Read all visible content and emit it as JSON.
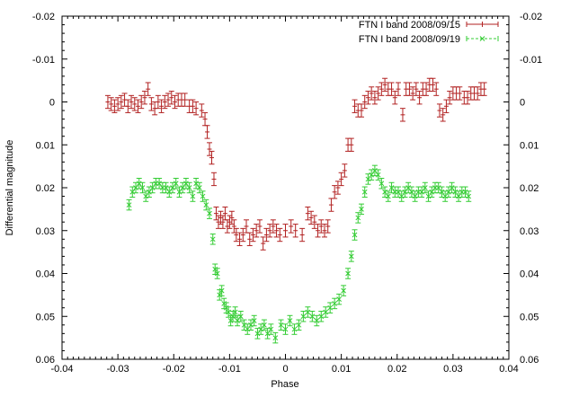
{
  "chart_data": {
    "type": "scatter",
    "title": "",
    "xlabel": "Phase",
    "ylabel": "Differential magnitude",
    "xlim": [
      -0.04,
      0.04
    ],
    "ylim": [
      -0.02,
      0.06
    ],
    "y_inverted": true,
    "grid": false,
    "legend_position": "top-right",
    "xticks": [
      "-0.04",
      "-0.03",
      "-0.02",
      "-0.01",
      "0",
      "0.01",
      "0.02",
      "0.03",
      "0.04"
    ],
    "yticks": [
      "-0.02",
      "-0.01",
      "0",
      "0.01",
      "0.02",
      "0.03",
      "0.04",
      "0.05",
      "0.06"
    ],
    "series": [
      {
        "name": "FTN I band 2008/09/15",
        "color": "#b22222",
        "marker": "plus",
        "yerr": 0.0015,
        "x": [
          -0.0318,
          -0.0312,
          -0.0306,
          -0.03,
          -0.0294,
          -0.0288,
          -0.0282,
          -0.0276,
          -0.027,
          -0.0264,
          -0.0258,
          -0.0252,
          -0.0246,
          -0.024,
          -0.0234,
          -0.0228,
          -0.0222,
          -0.0216,
          -0.021,
          -0.0204,
          -0.0198,
          -0.0192,
          -0.0186,
          -0.018,
          -0.0172,
          -0.0166,
          -0.016,
          -0.015,
          -0.0144,
          -0.014,
          -0.0136,
          -0.0132,
          -0.0128,
          -0.0124,
          -0.012,
          -0.0116,
          -0.0112,
          -0.0108,
          -0.0104,
          -0.01,
          -0.0096,
          -0.0092,
          -0.0088,
          -0.0082,
          -0.0076,
          -0.007,
          -0.0064,
          -0.0058,
          -0.0052,
          -0.0046,
          -0.004,
          -0.0034,
          -0.0028,
          -0.0022,
          -0.0016,
          -0.001,
          0.0,
          0.001,
          0.0018,
          0.003,
          0.004,
          0.0046,
          0.0052,
          0.0058,
          0.0064,
          0.007,
          0.0076,
          0.0082,
          0.0088,
          0.0094,
          0.01,
          0.0106,
          0.0112,
          0.0118,
          0.0124,
          0.013,
          0.0136,
          0.0142,
          0.0148,
          0.0154,
          0.016,
          0.0166,
          0.0172,
          0.0178,
          0.0184,
          0.019,
          0.0196,
          0.0202,
          0.021,
          0.0216,
          0.0222,
          0.0228,
          0.0234,
          0.024,
          0.0246,
          0.0252,
          0.0258,
          0.0264,
          0.027,
          0.0276,
          0.0282,
          0.0288,
          0.0294,
          0.03,
          0.0306,
          0.0312,
          0.032,
          0.0326,
          0.0332,
          0.0338,
          0.0344,
          0.035,
          0.0356
        ],
        "y": [
          0.0,
          0.0005,
          0.001,
          0.0005,
          0.0,
          -0.0005,
          0.001,
          0.0,
          0.0005,
          0.001,
          0.0,
          -0.001,
          -0.003,
          0.0005,
          0.0015,
          0.0,
          0.001,
          0.0,
          -0.0005,
          -0.001,
          0.0,
          -0.0005,
          -0.0005,
          -0.0005,
          0.001,
          0.001,
          0.0015,
          0.002,
          0.004,
          0.007,
          0.011,
          0.013,
          0.018,
          0.026,
          0.028,
          0.027,
          0.028,
          0.026,
          0.029,
          0.028,
          0.027,
          0.029,
          0.031,
          0.032,
          0.031,
          0.029,
          0.032,
          0.031,
          0.03,
          0.029,
          0.033,
          0.031,
          0.03,
          0.029,
          0.03,
          0.031,
          0.03,
          0.029,
          0.03,
          0.031,
          0.026,
          0.027,
          0.028,
          0.03,
          0.029,
          0.03,
          0.029,
          0.024,
          0.021,
          0.02,
          0.018,
          0.016,
          0.01,
          0.01,
          0.001,
          0.002,
          0.002,
          0.0,
          -0.001,
          -0.002,
          -0.001,
          -0.002,
          -0.003,
          -0.004,
          -0.003,
          -0.003,
          -0.001,
          -0.003,
          0.003,
          -0.003,
          -0.003,
          -0.002,
          -0.003,
          -0.001,
          -0.003,
          -0.003,
          -0.004,
          -0.004,
          -0.003,
          0.002,
          0.003,
          0.001,
          -0.001,
          -0.002,
          -0.002,
          -0.002,
          -0.001,
          -0.001,
          -0.002,
          -0.002,
          -0.002,
          -0.003,
          -0.003
        ]
      },
      {
        "name": "FTN I band 2008/09/19",
        "color": "#33cc33",
        "marker": "cross",
        "yerr": 0.0012,
        "x": [
          -0.028,
          -0.0274,
          -0.0268,
          -0.0262,
          -0.0256,
          -0.025,
          -0.0244,
          -0.0238,
          -0.0232,
          -0.0226,
          -0.022,
          -0.0214,
          -0.0208,
          -0.0202,
          -0.0196,
          -0.019,
          -0.0184,
          -0.0178,
          -0.0172,
          -0.0166,
          -0.016,
          -0.0154,
          -0.0148,
          -0.0142,
          -0.0136,
          -0.013,
          -0.0126,
          -0.0122,
          -0.0118,
          -0.0114,
          -0.011,
          -0.0106,
          -0.0102,
          -0.0098,
          -0.0094,
          -0.009,
          -0.0086,
          -0.008,
          -0.0074,
          -0.0068,
          -0.0062,
          -0.0056,
          -0.005,
          -0.0044,
          -0.0038,
          -0.0032,
          -0.0026,
          -0.0018,
          -0.0008,
          0.0,
          0.0008,
          0.0016,
          0.0024,
          0.0032,
          0.004,
          0.0048,
          0.0056,
          0.0064,
          0.0072,
          0.008,
          0.0088,
          0.0096,
          0.0104,
          0.0112,
          0.0118,
          0.0124,
          0.013,
          0.0136,
          0.0142,
          0.0148,
          0.0154,
          0.016,
          0.0166,
          0.0172,
          0.0178,
          0.0184,
          0.019,
          0.0196,
          0.0202,
          0.0208,
          0.0214,
          0.022,
          0.0226,
          0.0232,
          0.0238,
          0.0244,
          0.025,
          0.0256,
          0.0262,
          0.0268,
          0.0274,
          0.028,
          0.0286,
          0.0292,
          0.0298,
          0.0304,
          0.031,
          0.0316,
          0.0322,
          0.0328
        ],
        "y": [
          0.024,
          0.021,
          0.02,
          0.019,
          0.02,
          0.022,
          0.021,
          0.02,
          0.019,
          0.019,
          0.02,
          0.02,
          0.021,
          0.02,
          0.019,
          0.021,
          0.02,
          0.019,
          0.02,
          0.022,
          0.019,
          0.02,
          0.022,
          0.024,
          0.026,
          0.032,
          0.039,
          0.04,
          0.045,
          0.044,
          0.047,
          0.048,
          0.049,
          0.051,
          0.05,
          0.049,
          0.051,
          0.05,
          0.052,
          0.053,
          0.052,
          0.051,
          0.054,
          0.053,
          0.052,
          0.054,
          0.053,
          0.055,
          0.052,
          0.053,
          0.051,
          0.053,
          0.052,
          0.05,
          0.049,
          0.05,
          0.051,
          0.05,
          0.049,
          0.048,
          0.047,
          0.046,
          0.044,
          0.04,
          0.036,
          0.031,
          0.027,
          0.025,
          0.021,
          0.018,
          0.017,
          0.016,
          0.017,
          0.019,
          0.021,
          0.022,
          0.02,
          0.021,
          0.021,
          0.022,
          0.021,
          0.02,
          0.021,
          0.022,
          0.021,
          0.021,
          0.02,
          0.022,
          0.021,
          0.02,
          0.02,
          0.021,
          0.022,
          0.021,
          0.02,
          0.021,
          0.022,
          0.021,
          0.021,
          0.022
        ]
      }
    ]
  }
}
